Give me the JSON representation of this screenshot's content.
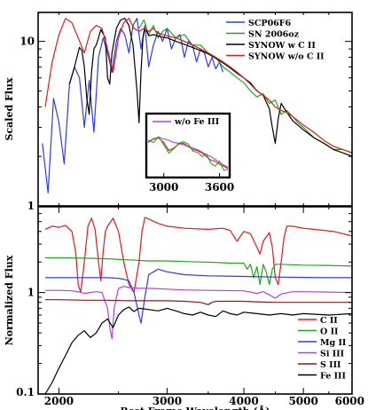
{
  "chart_data": [
    {
      "type": "line",
      "panel": "top",
      "ylabel": "Scaled Flux",
      "xscale": "log",
      "yscale": "log",
      "xlim": [
        1850,
        6000
      ],
      "ylim": [
        1,
        15
      ],
      "yticks": [
        {
          "value": 1,
          "label": "1"
        },
        {
          "value": 10,
          "label": "10"
        }
      ],
      "legend_position": "top-right",
      "series": [
        {
          "name": "SCP06F6",
          "color": "#2f3cf0",
          "x": [
            1880,
            1920,
            1960,
            2000,
            2040,
            2080,
            2120,
            2160,
            2200,
            2240,
            2280,
            2320,
            2360,
            2400,
            2440,
            2480,
            2520,
            2560,
            2600,
            2640,
            2680,
            2720,
            2760,
            2800,
            2850,
            2900,
            2950,
            3000,
            3050,
            3100,
            3150,
            3200,
            3250,
            3300,
            3350,
            3400,
            3450,
            3500,
            3550,
            3600,
            3650,
            3700
          ],
          "y": [
            2.4,
            1.2,
            4.5,
            3.2,
            1.8,
            5.5,
            7.0,
            6.0,
            3.0,
            5.8,
            2.8,
            8.0,
            10.5,
            8.5,
            6.5,
            10.0,
            12.0,
            11.0,
            8.5,
            12.5,
            13.8,
            9.0,
            12.5,
            7.0,
            9.5,
            11.5,
            10.0,
            12.0,
            9.0,
            10.5,
            11.0,
            8.0,
            10.0,
            9.5,
            7.5,
            9.0,
            8.5,
            7.0,
            8.0,
            6.8,
            7.5,
            6.5
          ]
        },
        {
          "name": "SN 2006oz",
          "color": "#22a41e",
          "x": [
            2700,
            2750,
            2800,
            2850,
            2900,
            2950,
            3000,
            3100,
            3200,
            3300,
            3400,
            3500,
            3600,
            3700,
            3800,
            3900,
            4000,
            4100,
            4200,
            4300,
            4400,
            4500,
            4600,
            4700,
            4800,
            4900,
            5000,
            5200,
            5400,
            5600,
            5800,
            6000
          ],
          "y": [
            12.0,
            13.5,
            11.0,
            12.5,
            10.5,
            11.5,
            12.0,
            10.5,
            11.0,
            9.5,
            9.5,
            8.5,
            8.0,
            7.0,
            6.5,
            6.0,
            5.6,
            5.0,
            4.6,
            4.8,
            4.2,
            4.4,
            3.6,
            3.8,
            3.5,
            3.2,
            3.0,
            2.6,
            2.4,
            2.2,
            2.2,
            2.1
          ]
        },
        {
          "name": "SYNOW w C II",
          "color": "#000000",
          "x": [
            2080,
            2120,
            2160,
            2180,
            2200,
            2220,
            2240,
            2260,
            2280,
            2300,
            2320,
            2340,
            2380,
            2400,
            2420,
            2440,
            2480,
            2520,
            2560,
            2600,
            2640,
            2680,
            2700,
            2720,
            2740,
            2760,
            2780,
            2800,
            2850,
            2900,
            2950,
            3000,
            3100,
            3200,
            3300,
            3400,
            3500,
            3600,
            3700,
            3800,
            3900,
            4000,
            4100,
            4200,
            4300,
            4400,
            4450,
            4500,
            4550,
            4600,
            4700,
            4800,
            5000,
            5200,
            5400,
            5600,
            5800,
            6000
          ],
          "y": [
            5.5,
            7.0,
            9.2,
            8.8,
            7.0,
            4.5,
            3.6,
            6.5,
            9.0,
            9.5,
            10.5,
            11.8,
            10.5,
            6.0,
            5.5,
            8.5,
            12.0,
            13.5,
            13.8,
            12.5,
            9.5,
            5.0,
            3.2,
            6.5,
            10.5,
            12.0,
            11.5,
            10.8,
            11.0,
            10.8,
            10.6,
            10.5,
            10.0,
            9.6,
            9.2,
            8.8,
            8.4,
            7.9,
            7.4,
            6.9,
            6.4,
            6.0,
            5.6,
            5.0,
            4.7,
            3.9,
            3.0,
            2.4,
            3.4,
            4.2,
            3.7,
            3.3,
            2.9,
            2.6,
            2.4,
            2.2,
            2.1,
            2.0
          ]
        },
        {
          "name": "SYNOW w/o C II",
          "color": "#e01b1b",
          "x": [
            1900,
            1950,
            2000,
            2050,
            2100,
            2150,
            2200,
            2250,
            2300,
            2350,
            2400,
            2450,
            2500,
            2550,
            2600,
            2650,
            2700,
            2750,
            2800,
            2850,
            2900,
            3000,
            3100,
            3200,
            3300,
            3400,
            3500,
            3600,
            3700,
            3800,
            3900,
            4000,
            4100,
            4200,
            4300,
            4400,
            4500,
            4600,
            4700,
            4800,
            5000,
            5200,
            5400,
            5600,
            5800,
            6000
          ],
          "y": [
            4.0,
            7.5,
            11.0,
            13.8,
            13.0,
            10.5,
            8.5,
            11.5,
            12.5,
            12.0,
            9.0,
            6.5,
            10.5,
            13.0,
            13.8,
            12.0,
            11.5,
            12.0,
            11.5,
            12.0,
            11.2,
            10.8,
            10.5,
            10.0,
            9.5,
            9.0,
            8.5,
            8.0,
            7.5,
            7.0,
            6.5,
            6.0,
            5.5,
            5.0,
            4.7,
            4.4,
            4.0,
            3.8,
            3.7,
            3.5,
            3.1,
            2.8,
            2.5,
            2.3,
            2.2,
            2.1
          ]
        }
      ]
    },
    {
      "type": "line",
      "panel": "inset",
      "xscale": "log",
      "xlim": [
        2850,
        3700
      ],
      "xticks": [
        {
          "value": 3000,
          "label": "3000"
        },
        {
          "value": 3600,
          "label": "3600"
        }
      ],
      "legend_position": "top",
      "series": [
        {
          "name": "w/o Fe III",
          "color": "#b040f0",
          "x": [
            2850,
            2900,
            2950,
            3000,
            3050,
            3100,
            3150,
            3200,
            3250,
            3300,
            3350,
            3400,
            3450,
            3500,
            3550,
            3600,
            3650,
            3700
          ],
          "y": [
            10.5,
            11.0,
            11.2,
            11.0,
            10.8,
            10.5,
            10.4,
            10.2,
            10.0,
            9.8,
            9.6,
            9.3,
            9.0,
            8.8,
            8.5,
            8.2,
            7.9,
            7.7
          ]
        },
        {
          "name": "",
          "color": "#e01b1b",
          "x": [
            2850,
            2900,
            2950,
            3000,
            3050,
            3100,
            3150,
            3200,
            3250,
            3300,
            3350,
            3400,
            3450,
            3500,
            3550,
            3600,
            3650,
            3700
          ],
          "y": [
            10.6,
            11.0,
            11.1,
            10.5,
            9.5,
            9.8,
            10.3,
            10.4,
            10.0,
            9.6,
            9.5,
            9.2,
            8.8,
            8.4,
            8.3,
            8.0,
            7.8,
            7.6
          ]
        },
        {
          "name": "",
          "color": "#22a41e",
          "x": [
            2850,
            2900,
            2950,
            3000,
            3050,
            3100,
            3150,
            3200,
            3250,
            3300,
            3350,
            3400,
            3450,
            3500,
            3550,
            3600,
            3650,
            3700
          ],
          "y": [
            10.8,
            10.5,
            11.3,
            10.2,
            9.2,
            9.7,
            10.4,
            10.6,
            10.3,
            9.4,
            9.3,
            8.8,
            9.1,
            8.1,
            7.8,
            8.3,
            7.4,
            7.5
          ]
        }
      ]
    },
    {
      "type": "line",
      "panel": "bottom",
      "xlabel": "Rest Frame Wavelength (Å)",
      "ylabel": "Normalized Flux",
      "xscale": "log",
      "yscale": "log",
      "xlim": [
        1850,
        6000
      ],
      "ylim": [
        0.1,
        7
      ],
      "xticks": [
        {
          "value": 2000,
          "label": "2000"
        },
        {
          "value": 3000,
          "label": "3000"
        },
        {
          "value": 4000,
          "label": "4000"
        },
        {
          "value": 5000,
          "label": "5000"
        },
        {
          "value": 6000,
          "label": "6000"
        }
      ],
      "yticks": [
        {
          "value": 0.1,
          "label": "0.1"
        },
        {
          "value": 1,
          "label": "1"
        }
      ],
      "legend_position": "bottom-right",
      "series": [
        {
          "name": "C II",
          "color": "#e01b1b",
          "x": [
            1900,
            1950,
            2000,
            2050,
            2100,
            2130,
            2150,
            2170,
            2200,
            2230,
            2260,
            2290,
            2320,
            2340,
            2360,
            2380,
            2400,
            2450,
            2500,
            2550,
            2600,
            2650,
            2700,
            2730,
            2760,
            2800,
            2900,
            3000,
            3200,
            3500,
            3700,
            3800,
            3850,
            3900,
            3950,
            4000,
            4100,
            4200,
            4250,
            4300,
            4400,
            4450,
            4500,
            4550,
            4600,
            4650,
            4700,
            4800,
            5000,
            5200,
            5400,
            5600,
            5800,
            6000
          ],
          "y": [
            4.2,
            4.5,
            4.4,
            4.6,
            4.0,
            2.5,
            1.2,
            1.0,
            2.0,
            4.5,
            5.4,
            4.2,
            2.0,
            1.3,
            2.5,
            4.0,
            4.5,
            5.4,
            4.0,
            2.0,
            1.2,
            1.0,
            2.0,
            4.0,
            5.5,
            5.3,
            4.8,
            4.5,
            4.3,
            4.2,
            4.3,
            4.1,
            3.6,
            3.2,
            3.6,
            4.0,
            3.8,
            2.8,
            2.4,
            3.2,
            3.9,
            2.8,
            1.4,
            1.2,
            2.0,
            3.5,
            4.5,
            4.5,
            4.3,
            4.2,
            4.1,
            4.0,
            3.8,
            3.6
          ]
        },
        {
          "name": "O II",
          "color": "#22a41e",
          "x": [
            1900,
            2000,
            2200,
            2400,
            2600,
            2800,
            3000,
            3200,
            3400,
            3600,
            3800,
            4000,
            4050,
            4100,
            4150,
            4200,
            4250,
            4300,
            4350,
            4400,
            4450,
            4500,
            4600,
            4800,
            5000,
            5500,
            6000
          ],
          "y": [
            2.2,
            2.2,
            2.18,
            2.15,
            2.1,
            2.05,
            2.05,
            2.02,
            2.0,
            1.98,
            1.95,
            1.95,
            1.7,
            1.9,
            1.4,
            1.8,
            1.2,
            1.9,
            1.6,
            1.2,
            1.7,
            1.9,
            1.9,
            1.88,
            1.86,
            1.85,
            1.82
          ]
        },
        {
          "name": "Mg II",
          "color": "#2f3cf0",
          "x": [
            1900,
            2000,
            2200,
            2400,
            2500,
            2550,
            2600,
            2650,
            2700,
            2720,
            2760,
            2800,
            2900,
            3000,
            3200,
            3500,
            4000,
            4500,
            5000,
            5500,
            6000
          ],
          "y": [
            1.4,
            1.4,
            1.4,
            1.4,
            1.38,
            1.35,
            1.3,
            1.0,
            0.6,
            0.5,
            0.9,
            1.5,
            1.7,
            1.6,
            1.5,
            1.46,
            1.44,
            1.42,
            1.41,
            1.4,
            1.4
          ]
        },
        {
          "name": "Si III",
          "color": "#b040f0",
          "x": [
            1900,
            2000,
            2100,
            2150,
            2200,
            2250,
            2300,
            2350,
            2400,
            2420,
            2440,
            2460,
            2500,
            2550,
            2600,
            2700,
            2800,
            3000,
            3200,
            3500,
            4000,
            4200,
            4300,
            4400,
            4500,
            4600,
            4800,
            5000,
            5500,
            6000
          ],
          "y": [
            1.05,
            1.05,
            1.04,
            1.02,
            0.98,
            1.0,
            1.02,
            1.0,
            0.7,
            0.45,
            0.35,
            0.7,
            1.1,
            1.15,
            1.12,
            1.1,
            1.1,
            1.08,
            1.06,
            1.05,
            1.04,
            0.98,
            1.02,
            0.95,
            0.88,
            0.97,
            1.02,
            1.02,
            1.01,
            1.0
          ]
        },
        {
          "name": "S III",
          "color": "#8b1a1a",
          "x": [
            1900,
            2000,
            2200,
            2400,
            2600,
            2800,
            3000,
            3200,
            3400,
            3500,
            3550,
            3600,
            3800,
            4000,
            4200,
            4500,
            5000,
            5500,
            6000
          ],
          "y": [
            0.85,
            0.85,
            0.84,
            0.84,
            0.83,
            0.83,
            0.83,
            0.82,
            0.8,
            0.76,
            0.8,
            0.82,
            0.82,
            0.82,
            0.81,
            0.8,
            0.8,
            0.8,
            0.8
          ]
        },
        {
          "name": "Fe III",
          "color": "#000000",
          "x": [
            1900,
            1950,
            2000,
            2050,
            2100,
            2150,
            2200,
            2250,
            2300,
            2350,
            2400,
            2450,
            2500,
            2550,
            2600,
            2650,
            2700,
            2800,
            2900,
            3000,
            3100,
            3200,
            3300,
            3400,
            3500,
            3600,
            3700,
            3800,
            3900,
            4000,
            4200,
            4400,
            4600,
            4800,
            5000,
            5500,
            6000
          ],
          "y": [
            0.1,
            0.13,
            0.18,
            0.24,
            0.32,
            0.38,
            0.42,
            0.36,
            0.4,
            0.5,
            0.55,
            0.45,
            0.6,
            0.68,
            0.72,
            0.65,
            0.7,
            0.68,
            0.66,
            0.7,
            0.66,
            0.62,
            0.6,
            0.64,
            0.6,
            0.58,
            0.66,
            0.62,
            0.6,
            0.64,
            0.62,
            0.6,
            0.62,
            0.6,
            0.62,
            0.6,
            0.62
          ]
        }
      ]
    }
  ]
}
